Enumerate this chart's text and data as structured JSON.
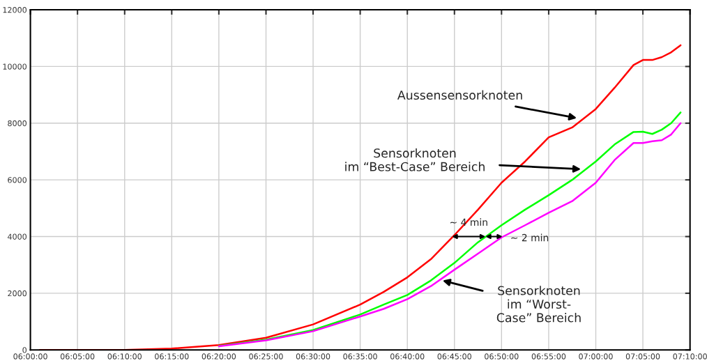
{
  "chart_data": {
    "type": "line",
    "x": [
      6.0167,
      6.0833,
      6.1667,
      6.25,
      6.3333,
      6.4167,
      6.5,
      6.5833,
      6.625,
      6.6667,
      6.7083,
      6.75,
      6.7917,
      6.8333,
      6.875,
      6.9167,
      6.9583,
      7.0,
      7.0333,
      7.0667,
      7.0833,
      7.1,
      7.1167,
      7.1333,
      7.15
    ],
    "series": [
      {
        "color": "#ff0000",
        "values": [
          0,
          0,
          0,
          50,
          170,
          430,
          900,
          1600,
          2050,
          2560,
          3200,
          4050,
          4950,
          5900,
          6650,
          7500,
          7850,
          8500,
          9250,
          10050,
          10230,
          10230,
          10330,
          10500,
          10750
        ]
      },
      {
        "color": "#00ff00",
        "values": [
          null,
          null,
          null,
          null,
          140,
          360,
          700,
          1250,
          1600,
          1940,
          2450,
          3070,
          3800,
          4400,
          4950,
          5460,
          6000,
          6650,
          7250,
          7690,
          7700,
          7620,
          7770,
          8000,
          8380
        ]
      },
      {
        "color": "#ff00ff",
        "values": [
          null,
          null,
          null,
          null,
          130,
          340,
          660,
          1180,
          1450,
          1790,
          2250,
          2830,
          3400,
          3970,
          4400,
          4840,
          5250,
          5900,
          6700,
          7300,
          7300,
          7360,
          7400,
          7600,
          8000
        ]
      }
    ],
    "xlim": [
      6.0,
      7.1667
    ],
    "xticks": [
      {
        "value": 6.0,
        "label": "06:00:00"
      },
      {
        "value": 6.0833,
        "label": "06:05:00"
      },
      {
        "value": 6.1667,
        "label": "06:10:00"
      },
      {
        "value": 6.25,
        "label": "06:15:00"
      },
      {
        "value": 6.3333,
        "label": "06:20:00"
      },
      {
        "value": 6.4167,
        "label": "06:25:00"
      },
      {
        "value": 6.5,
        "label": "06:30:00"
      },
      {
        "value": 6.5833,
        "label": "06:35:00"
      },
      {
        "value": 6.6667,
        "label": "06:40:00"
      },
      {
        "value": 6.75,
        "label": "06:45:00"
      },
      {
        "value": 6.8333,
        "label": "06:50:00"
      },
      {
        "value": 6.9167,
        "label": "06:55:00"
      },
      {
        "value": 7.0,
        "label": "07:00:00"
      },
      {
        "value": 7.0833,
        "label": "07:05:00"
      },
      {
        "value": 7.1667,
        "label": "07:10:00"
      }
    ],
    "ylim": [
      0,
      12000
    ],
    "yticks": [
      0,
      2000,
      4000,
      6000,
      8000,
      10000,
      12000
    ],
    "grid": true,
    "line_style": "solid",
    "marker": "none",
    "annotations": [
      "Aussensensorknoten",
      "Sensorknoten\nim “Best-Case” Bereich",
      "Sensorknoten\nim “Worst-\nCase” Bereich",
      {
        "text": "~ 4 min",
        "x": 6.7458,
        "y": 4000
      },
      {
        "text": "~ 2 min",
        "x": 6.805,
        "y": 4000
      }
    ]
  }
}
